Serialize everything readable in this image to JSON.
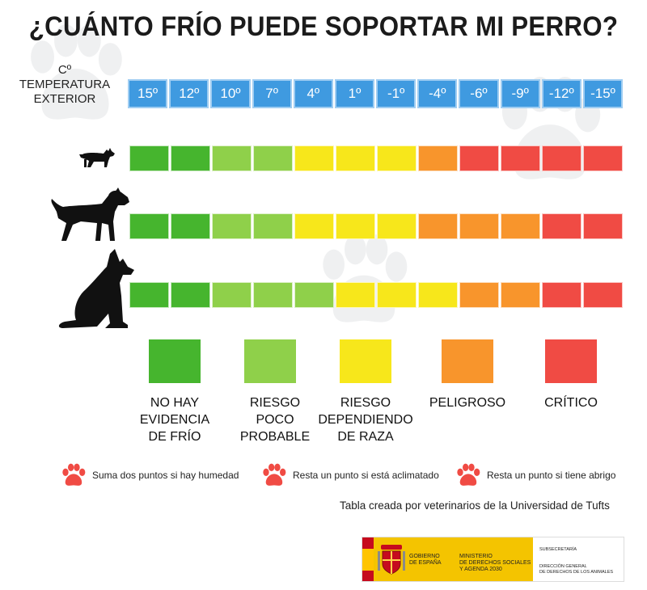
{
  "title": "¿CUÁNTO FRÍO PUEDE SOPORTAR MI PERRO?",
  "temperature_label": {
    "unit": "Cº",
    "line1": "TEMPERATURA",
    "line2": "EXTERIOR"
  },
  "temperatures": [
    "15º",
    "12º",
    "10º",
    "7º",
    "4º",
    "1º",
    "-1º",
    "-4º",
    "-6º",
    "-9º",
    "-12º",
    "-15º"
  ],
  "colors": {
    "green": "#46b52e",
    "lightgreen": "#8fd04a",
    "yellow": "#f7e71b",
    "orange": "#f8952c",
    "red": "#f04b44",
    "temp_cell": "#3f9ae0",
    "paw_red": "#f04b44",
    "bg_paw": "#5a6570"
  },
  "rows": [
    {
      "dog_icon": "small-dog-icon",
      "levels": [
        "green",
        "green",
        "lightgreen",
        "lightgreen",
        "yellow",
        "yellow",
        "yellow",
        "orange",
        "red",
        "red",
        "red",
        "red"
      ]
    },
    {
      "dog_icon": "medium-dog-icon",
      "levels": [
        "green",
        "green",
        "lightgreen",
        "lightgreen",
        "yellow",
        "yellow",
        "yellow",
        "orange",
        "orange",
        "orange",
        "red",
        "red"
      ]
    },
    {
      "dog_icon": "large-dog-icon",
      "levels": [
        "green",
        "green",
        "lightgreen",
        "lightgreen",
        "lightgreen",
        "yellow",
        "yellow",
        "yellow",
        "orange",
        "orange",
        "red",
        "red"
      ]
    }
  ],
  "legend": [
    {
      "color": "green",
      "lines": [
        "NO HAY",
        "EVIDENCIA",
        "DE FRÍO"
      ]
    },
    {
      "color": "lightgreen",
      "lines": [
        "RIESGO",
        "POCO",
        "PROBABLE"
      ]
    },
    {
      "color": "yellow",
      "lines": [
        "RIESGO",
        "DEPENDIENDO",
        "DE RAZA"
      ]
    },
    {
      "color": "orange",
      "lines": [
        "PELIGROSO"
      ]
    },
    {
      "color": "red",
      "lines": [
        "CRÍTICO"
      ]
    }
  ],
  "notes": [
    {
      "icon": "paw-icon",
      "text": "Suma dos puntos si hay humedad"
    },
    {
      "icon": "paw-icon",
      "text": "Resta un punto si está aclimatado"
    },
    {
      "icon": "paw-icon",
      "text": "Resta un punto si tiene abrigo"
    }
  ],
  "credit": "Tabla creada por veterinarios de la Universidad de Tufts",
  "government": {
    "gob1": "GOBIERNO",
    "gob2": "DE ESPAÑA",
    "min1": "MINISTERIO",
    "min2": "DE DERECHOS SOCIALES",
    "min3": "Y AGENDA 2030",
    "sub": "SUBSECRETARÍA",
    "dir1": "DIRECCIÓN GENERAL",
    "dir2": "DE DERECHOS DE LOS ANIMALES"
  }
}
